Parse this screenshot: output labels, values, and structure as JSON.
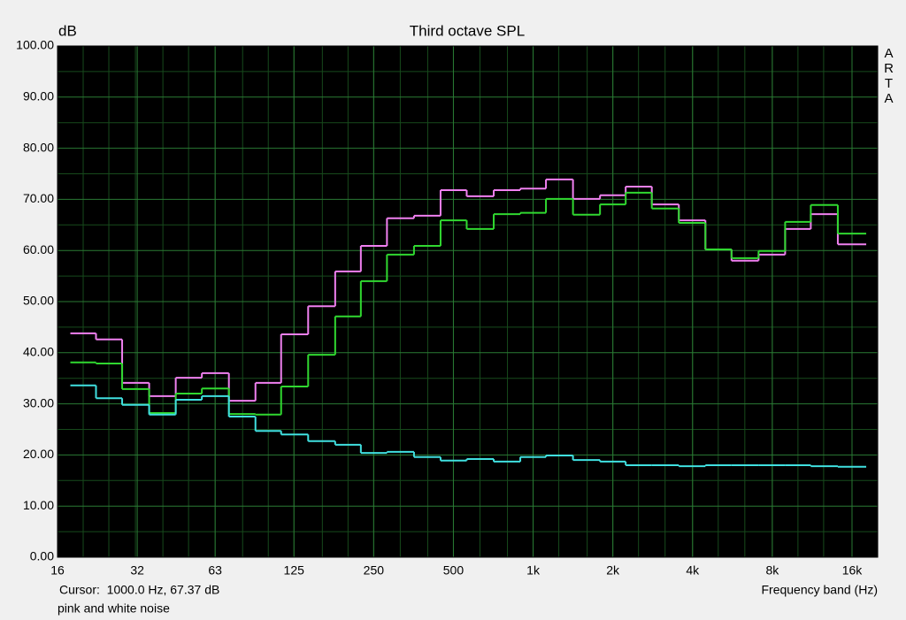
{
  "chart_data": {
    "type": "step",
    "title": "Third octave SPL",
    "y_label": "dB",
    "x_label": "Frequency band (Hz)",
    "side_label": "ARTA",
    "cursor_text": "Cursor:  1000.0 Hz, 67.37 dB",
    "caption": "pink and white noise",
    "log_x": true,
    "grid": true,
    "x": [
      20,
      25,
      31.5,
      40,
      50,
      63,
      80,
      100,
      125,
      160,
      200,
      250,
      315,
      400,
      500,
      630,
      800,
      1000,
      1250,
      1600,
      2000,
      2500,
      3150,
      4000,
      5000,
      6300,
      8000,
      10000,
      12500,
      16000
    ],
    "series": [
      {
        "color": "#f080f0",
        "values": [
          43.8,
          42.6,
          34.1,
          31.5,
          35.1,
          36.0,
          30.6,
          34.1,
          43.6,
          49.1,
          55.9,
          60.9,
          66.3,
          66.8,
          71.8,
          70.6,
          71.8,
          72.1,
          73.9,
          70.1,
          70.8,
          72.5,
          69.0,
          65.9,
          60.2,
          58.0,
          59.2,
          64.2,
          67.1,
          61.2
        ]
      },
      {
        "color": "#30d830",
        "values": [
          38.1,
          37.9,
          32.9,
          28.2,
          32.0,
          33.0,
          28.0,
          27.9,
          33.4,
          39.6,
          47.1,
          54.0,
          59.2,
          60.9,
          65.9,
          64.2,
          67.1,
          67.37,
          70.1,
          67.0,
          69.0,
          71.3,
          68.2,
          65.4,
          60.2,
          58.5,
          59.9,
          65.6,
          68.9,
          63.3
        ]
      },
      {
        "color": "#40e0e0",
        "values": [
          33.6,
          31.1,
          29.8,
          27.9,
          30.8,
          31.5,
          27.5,
          24.7,
          24.0,
          22.7,
          22.0,
          20.4,
          20.6,
          19.6,
          18.9,
          19.2,
          18.7,
          19.6,
          19.9,
          19.0,
          18.7,
          18.0,
          18.0,
          17.8,
          18.0,
          18.0,
          18.0,
          18.0,
          17.8,
          17.7
        ]
      }
    ],
    "xlim": [
      16,
      20000
    ],
    "xticks": [
      16,
      32,
      63,
      125,
      250,
      500,
      {
        "value": 1000,
        "label": "1k"
      },
      {
        "value": 2000,
        "label": "2k"
      },
      {
        "value": 4000,
        "label": "4k"
      },
      {
        "value": 8000,
        "label": "8k"
      },
      {
        "value": 16000,
        "label": "16k"
      }
    ],
    "ylim": [
      0,
      100
    ],
    "yticks": [
      {
        "value": 0,
        "label": "0.00"
      },
      {
        "value": 10,
        "label": "10.00"
      },
      {
        "value": 20,
        "label": "20.00"
      },
      {
        "value": 30,
        "label": "30.00"
      },
      {
        "value": 40,
        "label": "40.00"
      },
      {
        "value": 50,
        "label": "50.00"
      },
      {
        "value": 60,
        "label": "60.00"
      },
      {
        "value": 70,
        "label": "70.00"
      },
      {
        "value": 80,
        "label": "80.00"
      },
      {
        "value": 90,
        "label": "90.00"
      },
      {
        "value": 100,
        "label": "100.00"
      }
    ],
    "minor_yticks": [
      5,
      15,
      25,
      35,
      45,
      55,
      65,
      75,
      85,
      95
    ]
  }
}
